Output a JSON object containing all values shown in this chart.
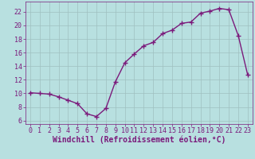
{
  "x": [
    0,
    1,
    2,
    3,
    4,
    5,
    6,
    7,
    8,
    9,
    10,
    11,
    12,
    13,
    14,
    15,
    16,
    17,
    18,
    19,
    20,
    21,
    22,
    23
  ],
  "y": [
    10.1,
    10.0,
    9.9,
    9.5,
    9.0,
    8.5,
    7.0,
    6.6,
    7.8,
    11.7,
    14.5,
    15.8,
    17.0,
    17.5,
    18.8,
    19.3,
    20.3,
    20.5,
    21.8,
    22.1,
    22.5,
    22.3,
    18.5,
    12.7
  ],
  "line_color": "#7b1a7b",
  "marker": "+",
  "marker_color": "#7b1a7b",
  "bg_color": "#b8e0e0",
  "grid_color": "#9fbfbf",
  "xlabel": "Windchill (Refroidissement éolien,°C)",
  "xlim": [
    -0.5,
    23.5
  ],
  "ylim": [
    5.5,
    23.5
  ],
  "yticks": [
    6,
    8,
    10,
    12,
    14,
    16,
    18,
    20,
    22
  ],
  "xticks": [
    0,
    1,
    2,
    3,
    4,
    5,
    6,
    7,
    8,
    9,
    10,
    11,
    12,
    13,
    14,
    15,
    16,
    17,
    18,
    19,
    20,
    21,
    22,
    23
  ],
  "tick_color": "#7b1a7b",
  "label_color": "#7b1a7b",
  "spine_color": "#7b1a7b",
  "font_size_xlabel": 7,
  "font_size_ticks": 6,
  "line_width": 1.0,
  "marker_size": 4
}
